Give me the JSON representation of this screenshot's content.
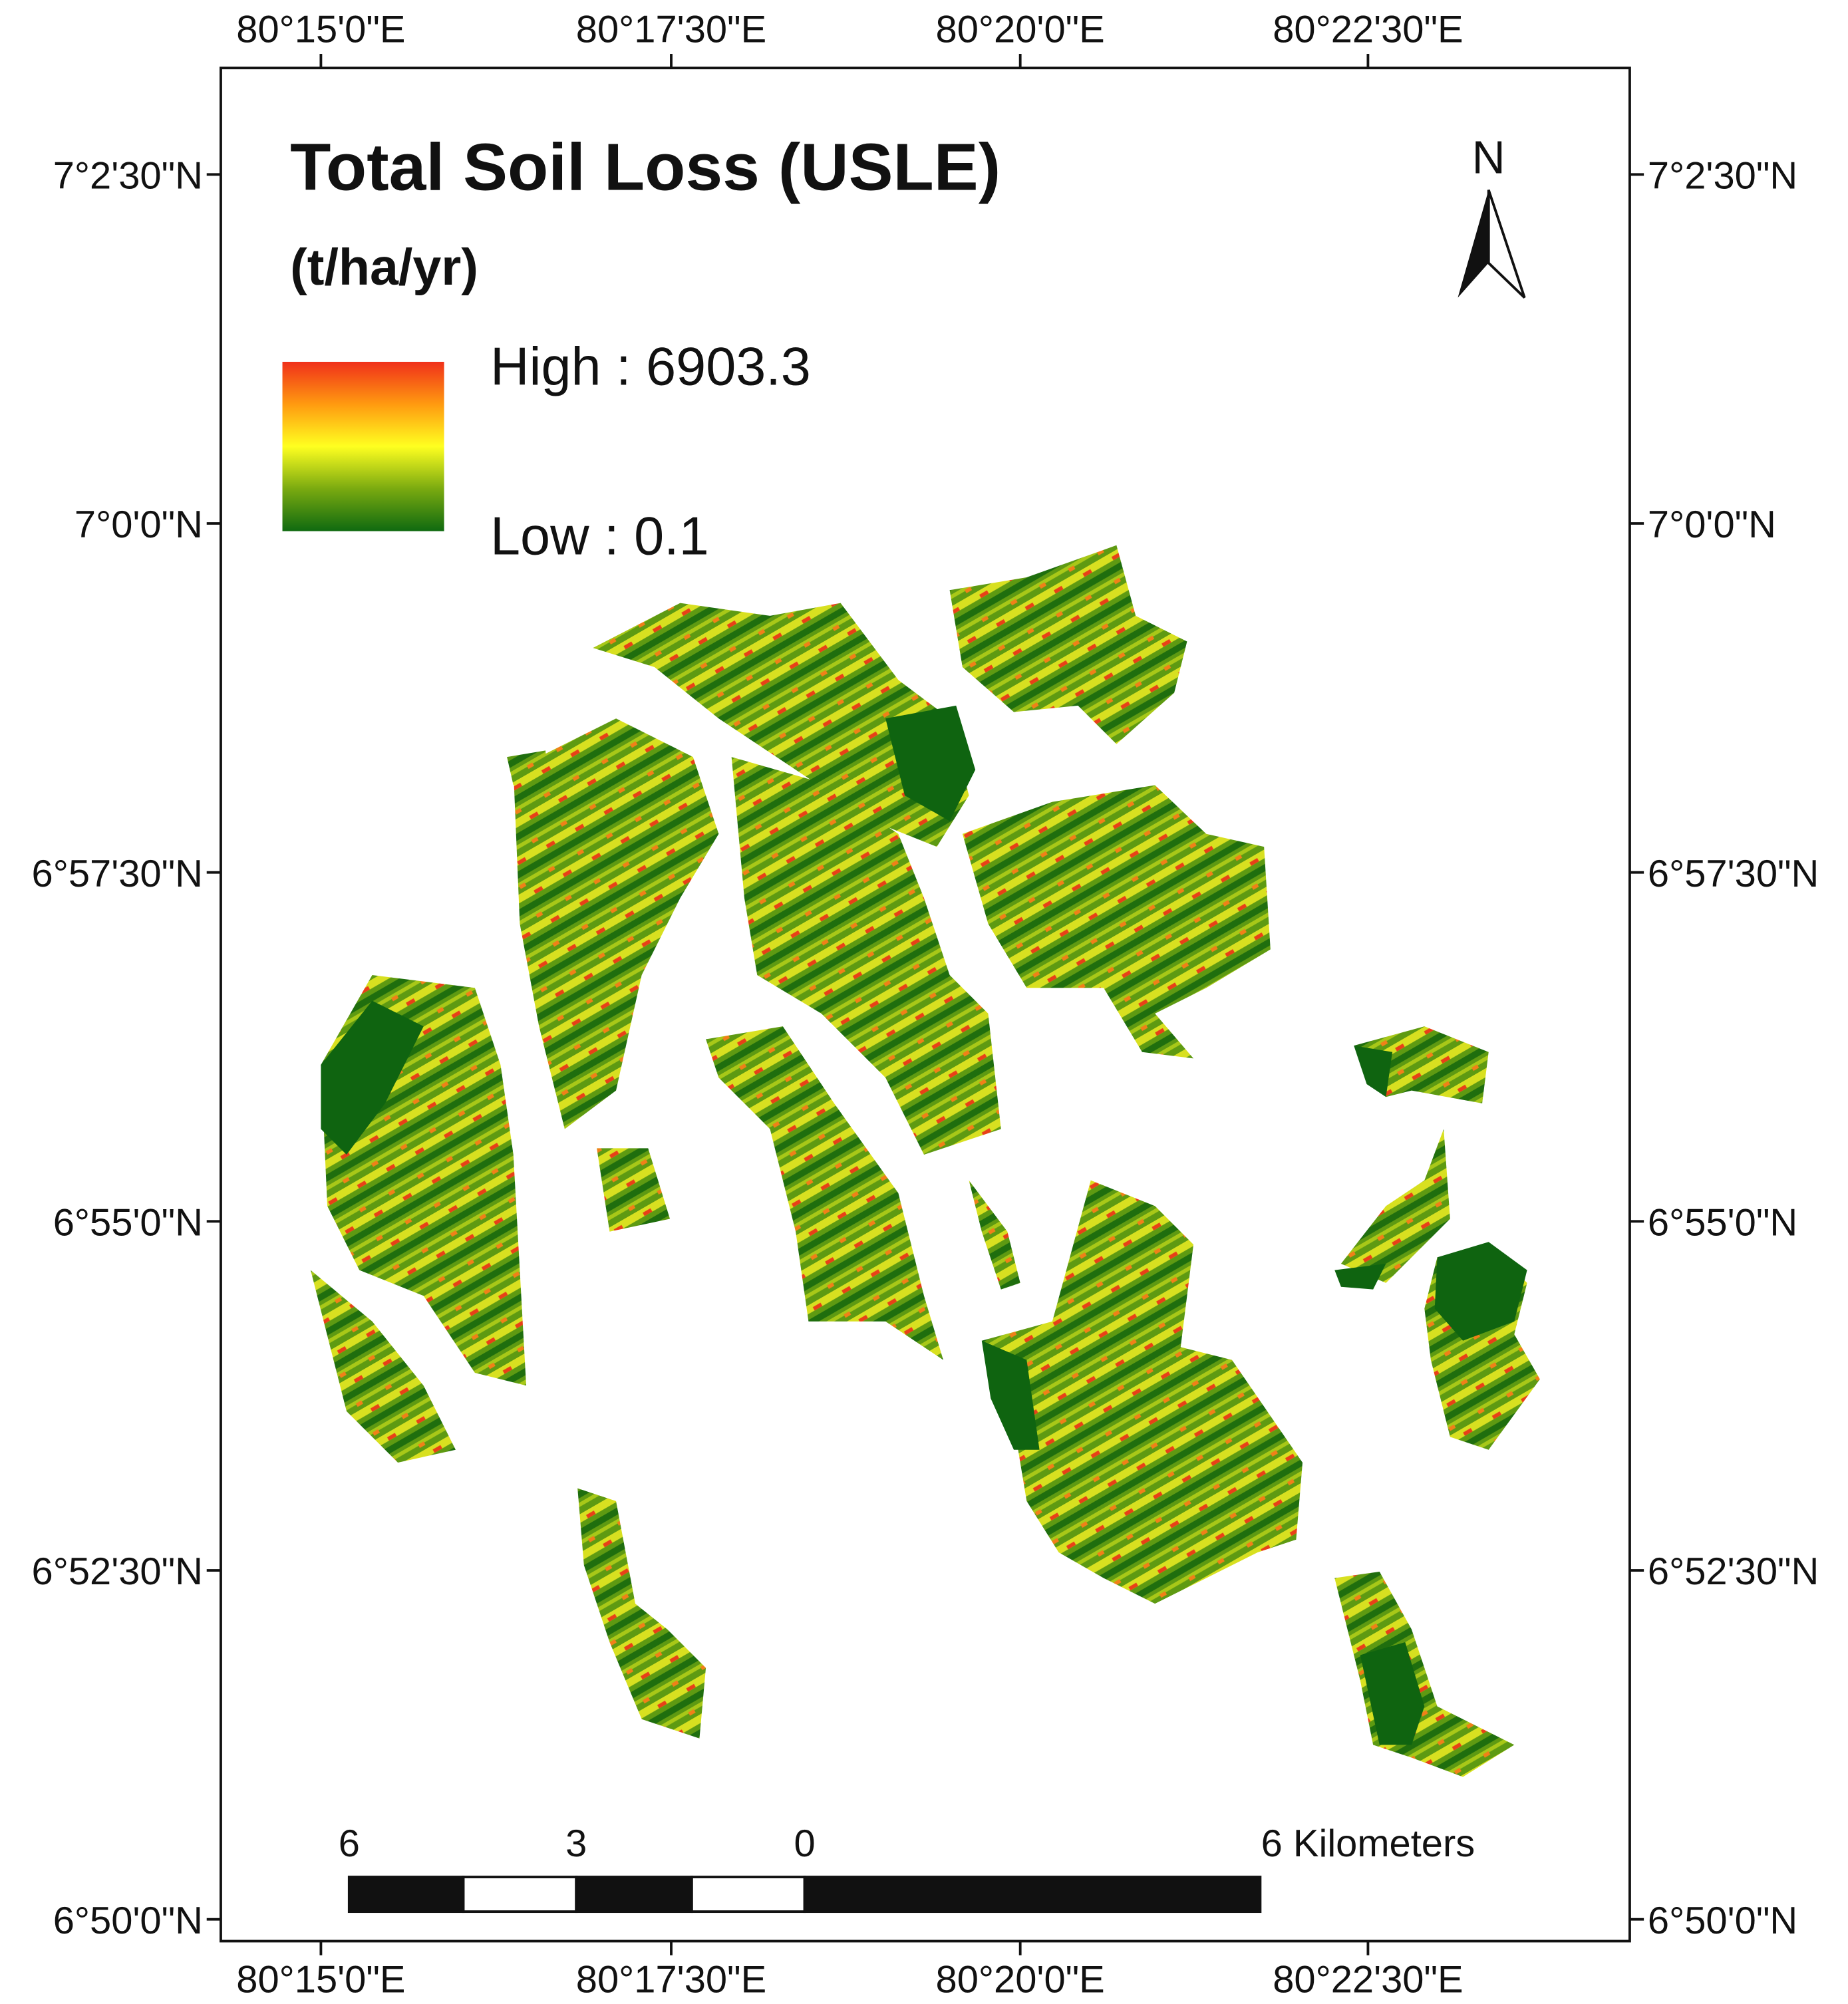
{
  "map": {
    "title": "Total Soil Loss (USLE)",
    "subtitle": "(t/ha/yr)",
    "legend": {
      "high": "High : 6903.3",
      "low": "Low : 0.1"
    },
    "north": "N",
    "lon_ticks": [
      "80°15'0\"E",
      "80°17'30\"E",
      "80°20'0\"E",
      "80°22'30\"E"
    ],
    "lat_ticks": [
      "7°2'30\"N",
      "7°0'0\"N",
      "6°57'30\"N",
      "6°55'0\"N",
      "6°52'30\"N",
      "6°50'0\"N"
    ],
    "scale_bar": {
      "labels": [
        "6",
        "3",
        "0",
        "6 Kilometers"
      ]
    }
  }
}
